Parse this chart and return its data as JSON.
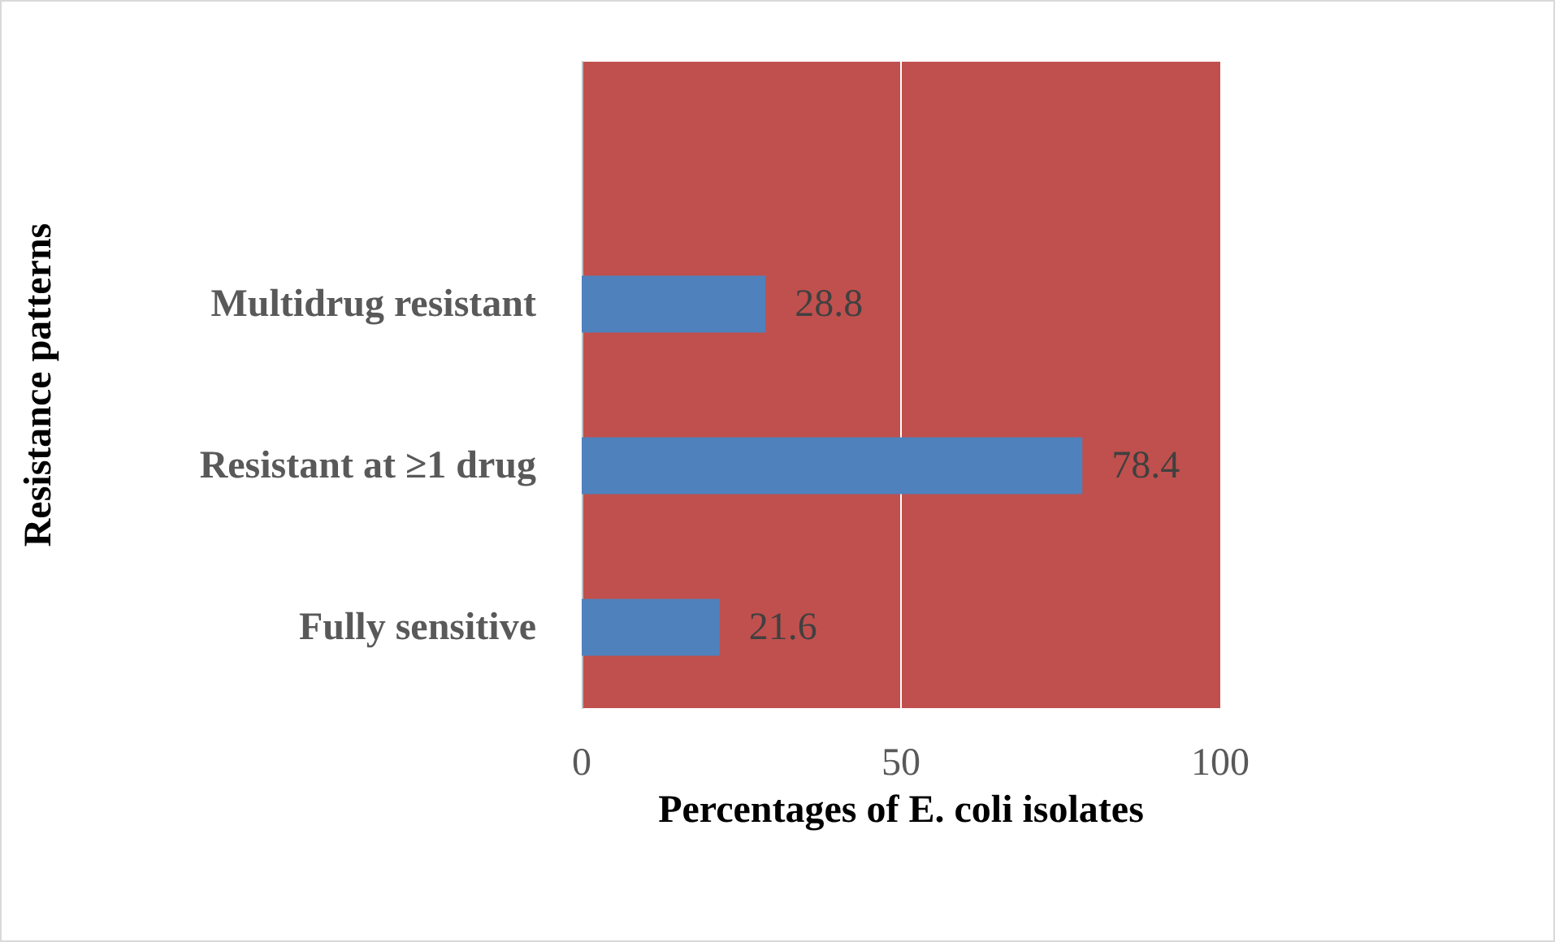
{
  "chart_data": {
    "type": "bar",
    "orientation": "horizontal",
    "xlabel": "Percentages of E. coli isolates",
    "ylabel": "Resistance patterns",
    "categories": [
      null,
      "Multidrug resistant",
      "Resistant at ≥1 drug",
      "Fully sensitive"
    ],
    "values": [
      null,
      28.8,
      78.4,
      21.6
    ],
    "color": "#4f81bd",
    "xlim": [
      0,
      100
    ],
    "xticks": [
      0,
      50,
      100
    ],
    "grid": "x",
    "data_labels": true
  }
}
